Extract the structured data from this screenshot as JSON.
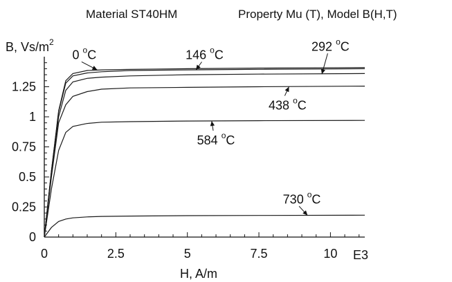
{
  "chart_data": {
    "type": "line",
    "title": "Material ST40HM",
    "subtitle": "Property Mu (T), Model B(H,T)",
    "xlabel": "H, A/m",
    "x_multiplier": "E3",
    "ylabel": "B, Vs/m",
    "ylabel_sup": "2",
    "xlim": [
      0,
      11.2
    ],
    "ylim": [
      0,
      1.5
    ],
    "x_ticks": [
      {
        "v": 0,
        "label": "0"
      },
      {
        "v": 2.5,
        "label": "2.5"
      },
      {
        "v": 5,
        "label": "5"
      },
      {
        "v": 7.5,
        "label": "7.5"
      },
      {
        "v": 10,
        "label": "10"
      }
    ],
    "y_ticks": [
      {
        "v": 0,
        "label": "0"
      },
      {
        "v": 0.25,
        "label": "0.25"
      },
      {
        "v": 0.5,
        "label": "0.5"
      },
      {
        "v": 0.75,
        "label": "0.75"
      },
      {
        "v": 1,
        "label": "1"
      },
      {
        "v": 1.25,
        "label": "1.25"
      }
    ],
    "grid": false,
    "series": [
      {
        "name": "0 °C",
        "x": [
          0,
          0.25,
          0.5,
          0.75,
          1,
          1.5,
          2,
          3,
          5,
          7.5,
          11.2
        ],
        "y": [
          0,
          0.55,
          1.05,
          1.3,
          1.36,
          1.385,
          1.39,
          1.395,
          1.4,
          1.405,
          1.41
        ]
      },
      {
        "name": "146 °C",
        "x": [
          0,
          0.25,
          0.5,
          0.75,
          1,
          1.5,
          2,
          3,
          5,
          7.5,
          11.2
        ],
        "y": [
          0,
          0.55,
          1.04,
          1.28,
          1.34,
          1.365,
          1.375,
          1.385,
          1.39,
          1.395,
          1.4
        ]
      },
      {
        "name": "292 °C",
        "x": [
          0,
          0.25,
          0.5,
          0.75,
          1,
          1.5,
          2,
          3,
          5,
          7.5,
          11.2
        ],
        "y": [
          0,
          0.54,
          1.0,
          1.22,
          1.29,
          1.32,
          1.33,
          1.34,
          1.35,
          1.355,
          1.36
        ]
      },
      {
        "name": "438 °C",
        "x": [
          0,
          0.25,
          0.5,
          0.75,
          1,
          1.5,
          2,
          3,
          5,
          7.5,
          11.2
        ],
        "y": [
          0,
          0.5,
          0.95,
          1.1,
          1.17,
          1.21,
          1.23,
          1.24,
          1.245,
          1.25,
          1.255
        ]
      },
      {
        "name": "584 °C",
        "x": [
          0,
          0.25,
          0.5,
          0.75,
          1,
          1.5,
          2,
          3,
          5,
          7.5,
          11.2
        ],
        "y": [
          0,
          0.4,
          0.72,
          0.87,
          0.92,
          0.945,
          0.955,
          0.96,
          0.965,
          0.968,
          0.97
        ]
      },
      {
        "name": "730 °C",
        "x": [
          0,
          0.25,
          0.5,
          0.75,
          1,
          1.5,
          2,
          3,
          5,
          7.5,
          11.2
        ],
        "y": [
          0,
          0.08,
          0.13,
          0.15,
          0.16,
          0.168,
          0.172,
          0.175,
          0.178,
          0.18,
          0.182
        ]
      }
    ],
    "annotations": [
      {
        "value": "0",
        "unit": "C",
        "sup": "o",
        "tx": 1.4,
        "ty": 1.48,
        "ax": 1.85,
        "ay": 1.39
      },
      {
        "value": "146",
        "unit": "C",
        "sup": "o",
        "tx": 5.6,
        "ty": 1.48,
        "ax": 5.3,
        "ay": 1.39
      },
      {
        "value": "292",
        "unit": "C",
        "sup": "o",
        "tx": 10.0,
        "ty": 1.55,
        "ax": 9.7,
        "ay": 1.355
      },
      {
        "value": "438",
        "unit": "C",
        "sup": "o",
        "tx": 8.5,
        "ty": 1.06,
        "ax": 8.55,
        "ay": 1.25
      },
      {
        "value": "584",
        "unit": "C",
        "sup": "o",
        "tx": 6.0,
        "ty": 0.77,
        "ax": 5.85,
        "ay": 0.965
      },
      {
        "value": "730",
        "unit": "C",
        "sup": "o",
        "tx": 9.0,
        "ty": 0.28,
        "ax": 9.2,
        "ay": 0.18
      }
    ]
  }
}
